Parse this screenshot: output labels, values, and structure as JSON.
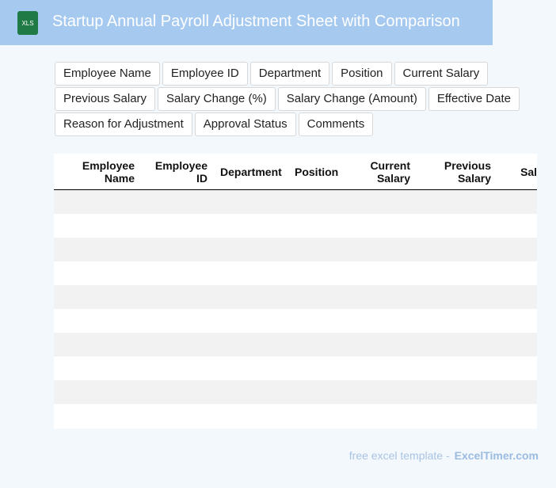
{
  "header": {
    "icon": "XLS",
    "title": "Startup Annual Payroll Adjustment Sheet with Comparison"
  },
  "fields": [
    "Employee Name",
    "Employee ID",
    "Department",
    "Position",
    "Current Salary",
    "Previous Salary",
    "Salary Change (%)",
    "Salary Change (Amount)",
    "Effective Date",
    "Reason for Adjustment",
    "Approval Status",
    "Comments"
  ],
  "table": {
    "columns": [
      "Employee Name",
      "Employee ID",
      "Department",
      "Position",
      "Current Salary",
      "Previous Salary",
      "Salary Change (%)"
    ]
  },
  "footer": {
    "text": "free excel template -",
    "brand": "ExcelTimer.com"
  }
}
